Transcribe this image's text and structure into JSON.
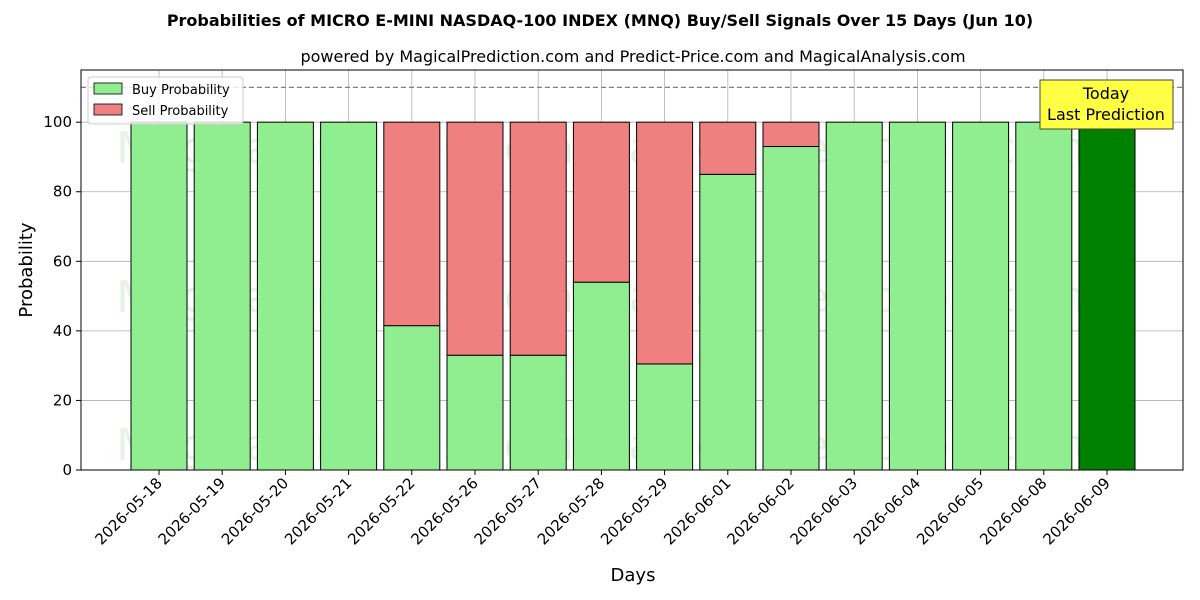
{
  "chart_data": {
    "type": "bar",
    "stacked": true,
    "title": "Probabilities of MICRO E-MINI NASDAQ-100 INDEX (MNQ) Buy/Sell Signals Over 15 Days (Jun 10)",
    "subtitle": "powered by MagicalPrediction.com and Predict-Price.com and MagicalAnalysis.com",
    "xlabel": "Days",
    "ylabel": "Probability",
    "ylim": [
      0,
      115
    ],
    "yticks": [
      0,
      20,
      40,
      60,
      80,
      100
    ],
    "reference_line": 110,
    "grid": true,
    "legend_position": "top-left",
    "categories": [
      "2026-05-18",
      "2026-05-19",
      "2026-05-20",
      "2026-05-21",
      "2026-05-22",
      "2026-05-26",
      "2026-05-27",
      "2026-05-28",
      "2026-05-29",
      "2026-06-01",
      "2026-06-02",
      "2026-06-03",
      "2026-06-04",
      "2026-06-05",
      "2026-06-08",
      "2026-06-09"
    ],
    "series": [
      {
        "name": "Buy Probability",
        "color": "#90ee90",
        "values": [
          100,
          100,
          100,
          100,
          41.5,
          33,
          33,
          54,
          30.5,
          85,
          93,
          100,
          100,
          100,
          100,
          100
        ]
      },
      {
        "name": "Sell Probability",
        "color": "#f08080",
        "values": [
          0,
          0,
          0,
          0,
          58.5,
          67,
          67,
          46,
          69.5,
          15,
          7,
          0,
          0,
          0,
          0,
          0
        ]
      }
    ],
    "highlight": {
      "index": 15,
      "color": "#008000"
    },
    "annotation": {
      "lines": [
        "Today",
        "Last Prediction"
      ],
      "background": "#ffff44"
    },
    "watermarks": [
      "MagicalAnalysis.com",
      "MagicalPrediction.com"
    ]
  }
}
